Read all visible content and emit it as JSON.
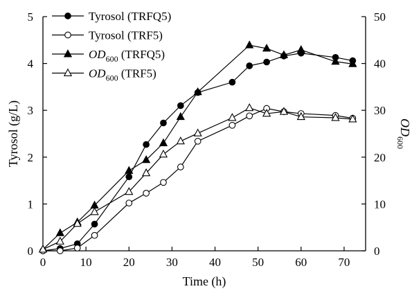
{
  "chart_data": {
    "type": "line",
    "xlabel": "Time (h)",
    "ylabel": "Tyrosol (g/L)",
    "y2label": {
      "main": "OD",
      "sub": "600"
    },
    "xlim": [
      0,
      75
    ],
    "ylim": [
      0,
      5
    ],
    "y2lim": [
      0,
      50
    ],
    "x_ticks": [
      "0",
      "10",
      "20",
      "30",
      "40",
      "50",
      "60",
      "70"
    ],
    "y_ticks": [
      "0",
      "1",
      "2",
      "3",
      "4",
      "5"
    ],
    "y2_ticks": [
      "0",
      "10",
      "20",
      "30",
      "40",
      "50"
    ],
    "legend_position": "top-left",
    "series": [
      {
        "name": "Tyrosol (TRFQ5)",
        "legend": {
          "main": "Tyrosol (TRFQ5)",
          "sub": "",
          "suffix": ""
        },
        "axis": "left",
        "marker": "circle-filled",
        "x": [
          0,
          4,
          8,
          12,
          20,
          24,
          28,
          32,
          36,
          44,
          48,
          52,
          56,
          60,
          68,
          72
        ],
        "y": [
          0.0,
          0.05,
          0.15,
          0.57,
          1.58,
          2.27,
          2.73,
          3.1,
          3.38,
          3.6,
          3.95,
          4.03,
          4.16,
          4.22,
          4.13,
          4.06
        ]
      },
      {
        "name": "Tyrosol (TRF5)",
        "legend": {
          "main": "Tyrosol (TRF5)",
          "sub": "",
          "suffix": ""
        },
        "axis": "left",
        "marker": "circle-open",
        "x": [
          0,
          4,
          8,
          12,
          20,
          24,
          28,
          32,
          36,
          44,
          48,
          52,
          56,
          60,
          68,
          72
        ],
        "y": [
          0.0,
          0.0,
          0.06,
          0.33,
          1.02,
          1.23,
          1.46,
          1.79,
          2.34,
          2.68,
          2.88,
          3.04,
          2.97,
          2.93,
          2.89,
          2.83
        ]
      },
      {
        "name": "OD600 (TRFQ5)",
        "legend": {
          "main": "OD",
          "sub": "600",
          "suffix": " (TRFQ5)"
        },
        "axis": "right",
        "marker": "triangle-filled",
        "x": [
          0,
          4,
          8,
          12,
          20,
          24,
          28,
          32,
          36,
          48,
          52,
          56,
          60,
          68,
          72
        ],
        "y": [
          0.3,
          3.8,
          6.1,
          9.7,
          17.1,
          19.4,
          23.0,
          28.6,
          33.9,
          43.9,
          43.2,
          41.8,
          42.9,
          40.4,
          39.9
        ]
      },
      {
        "name": "OD600 (TRF5)",
        "legend": {
          "main": "OD",
          "sub": "600",
          "suffix": " (TRF5)"
        },
        "axis": "right",
        "marker": "triangle-open",
        "x": [
          0,
          4,
          8,
          12,
          20,
          24,
          28,
          32,
          36,
          44,
          48,
          52,
          56,
          60,
          68,
          72
        ],
        "y": [
          0.3,
          2.0,
          5.8,
          8.3,
          12.6,
          16.6,
          20.6,
          23.4,
          25.1,
          28.4,
          30.5,
          29.3,
          29.7,
          28.6,
          28.4,
          28.1
        ]
      }
    ]
  }
}
